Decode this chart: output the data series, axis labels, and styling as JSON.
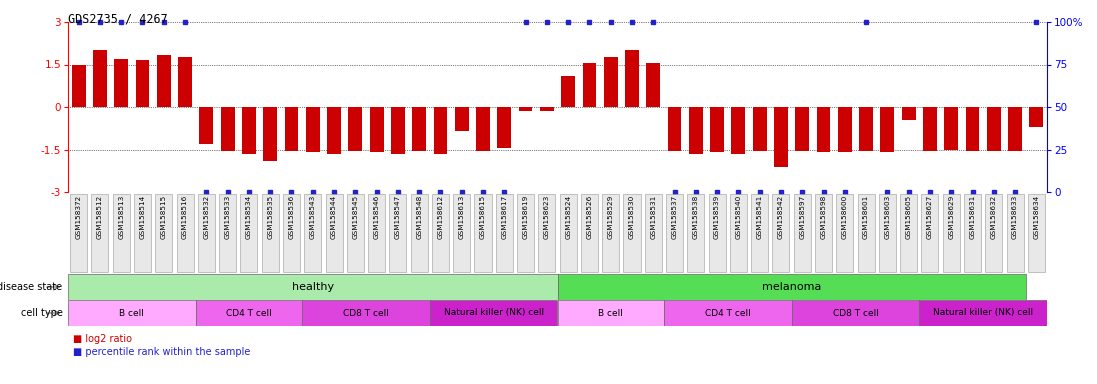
{
  "title": "GDS2735 / 4267",
  "samples": [
    "GSM158372",
    "GSM158512",
    "GSM158513",
    "GSM158514",
    "GSM158515",
    "GSM158516",
    "GSM158532",
    "GSM158533",
    "GSM158534",
    "GSM158535",
    "GSM158536",
    "GSM158543",
    "GSM158544",
    "GSM158545",
    "GSM158546",
    "GSM158547",
    "GSM158548",
    "GSM158612",
    "GSM158613",
    "GSM158615",
    "GSM158617",
    "GSM158619",
    "GSM158623",
    "GSM158524",
    "GSM158526",
    "GSM158529",
    "GSM158530",
    "GSM158531",
    "GSM158537",
    "GSM158538",
    "GSM158539",
    "GSM158540",
    "GSM158541",
    "GSM158542",
    "GSM158597",
    "GSM158598",
    "GSM158600",
    "GSM158601",
    "GSM158603",
    "GSM158605",
    "GSM158627",
    "GSM158629",
    "GSM158631",
    "GSM158632",
    "GSM158633",
    "GSM158634"
  ],
  "log2_ratio": [
    1.5,
    2.0,
    1.7,
    1.65,
    1.85,
    1.75,
    -1.3,
    -1.55,
    -1.65,
    -1.9,
    -1.55,
    -1.6,
    -1.65,
    -1.55,
    -1.6,
    -1.65,
    -1.55,
    -1.65,
    -0.85,
    -1.55,
    -1.45,
    -0.15,
    -0.15,
    1.1,
    1.55,
    1.75,
    2.0,
    1.55,
    -1.55,
    -1.65,
    -1.6,
    -1.65,
    -1.55,
    -2.1,
    -1.55,
    -1.6,
    -1.6,
    -1.55,
    -1.6,
    -0.45,
    -1.55,
    -1.5,
    -1.55,
    -1.55,
    -1.55,
    -0.7
  ],
  "percentile_high": [
    true,
    true,
    true,
    true,
    true,
    true,
    false,
    false,
    false,
    false,
    false,
    false,
    false,
    false,
    false,
    false,
    false,
    false,
    false,
    false,
    false,
    true,
    true,
    true,
    true,
    true,
    true,
    true,
    false,
    false,
    false,
    false,
    false,
    false,
    false,
    false,
    false,
    true,
    false,
    false,
    false,
    false,
    false,
    false,
    false,
    true
  ],
  "disease_state": [
    "healthy",
    "healthy",
    "healthy",
    "healthy",
    "healthy",
    "healthy",
    "healthy",
    "healthy",
    "healthy",
    "healthy",
    "healthy",
    "healthy",
    "healthy",
    "healthy",
    "healthy",
    "healthy",
    "healthy",
    "healthy",
    "healthy",
    "healthy",
    "healthy",
    "healthy",
    "healthy",
    "melanoma",
    "melanoma",
    "melanoma",
    "melanoma",
    "melanoma",
    "melanoma",
    "melanoma",
    "melanoma",
    "melanoma",
    "melanoma",
    "melanoma",
    "melanoma",
    "melanoma",
    "melanoma",
    "melanoma",
    "melanoma",
    "melanoma",
    "melanoma",
    "melanoma",
    "melanoma",
    "melanoma",
    "melanoma"
  ],
  "cell_type": [
    "B cell",
    "B cell",
    "B cell",
    "B cell",
    "B cell",
    "B cell",
    "CD4 T cell",
    "CD4 T cell",
    "CD4 T cell",
    "CD4 T cell",
    "CD4 T cell",
    "CD8 T cell",
    "CD8 T cell",
    "CD8 T cell",
    "CD8 T cell",
    "CD8 T cell",
    "CD8 T cell",
    "Natural killer (NK) cell",
    "Natural killer (NK) cell",
    "Natural killer (NK) cell",
    "Natural killer (NK) cell",
    "Natural killer (NK) cell",
    "Natural killer (NK) cell",
    "B cell",
    "B cell",
    "B cell",
    "B cell",
    "B cell",
    "CD4 T cell",
    "CD4 T cell",
    "CD4 T cell",
    "CD4 T cell",
    "CD4 T cell",
    "CD4 T cell",
    "CD8 T cell",
    "CD8 T cell",
    "CD8 T cell",
    "CD8 T cell",
    "CD8 T cell",
    "CD8 T cell",
    "Natural killer (NK) cell",
    "Natural killer (NK) cell",
    "Natural killer (NK) cell",
    "Natural killer (NK) cell",
    "Natural killer (NK) cell",
    "Natural killer (NK) cell"
  ],
  "bar_color": "#cc0000",
  "percentile_color": "#2222cc",
  "ylim": [
    -3,
    3
  ],
  "yticks_left": [
    -3,
    -1.5,
    0,
    1.5,
    3
  ],
  "ytick_labels_left": [
    "-3",
    "-1.5",
    "0",
    "1.5",
    "3"
  ],
  "right_ytick_positions": [
    -3,
    -1.5,
    0,
    1.5,
    3
  ],
  "right_ytick_labels": [
    "0",
    "25",
    "50",
    "75",
    "100%"
  ],
  "healthy_color": "#aaeaaa",
  "melanoma_color": "#55dd55",
  "cell_colors": {
    "B cell": "#ffaaff",
    "CD4 T cell": "#ee66ee",
    "CD8 T cell": "#dd44dd",
    "Natural killer (NK) cell": "#cc22cc"
  },
  "label_bg_color": "#e8e8e8"
}
